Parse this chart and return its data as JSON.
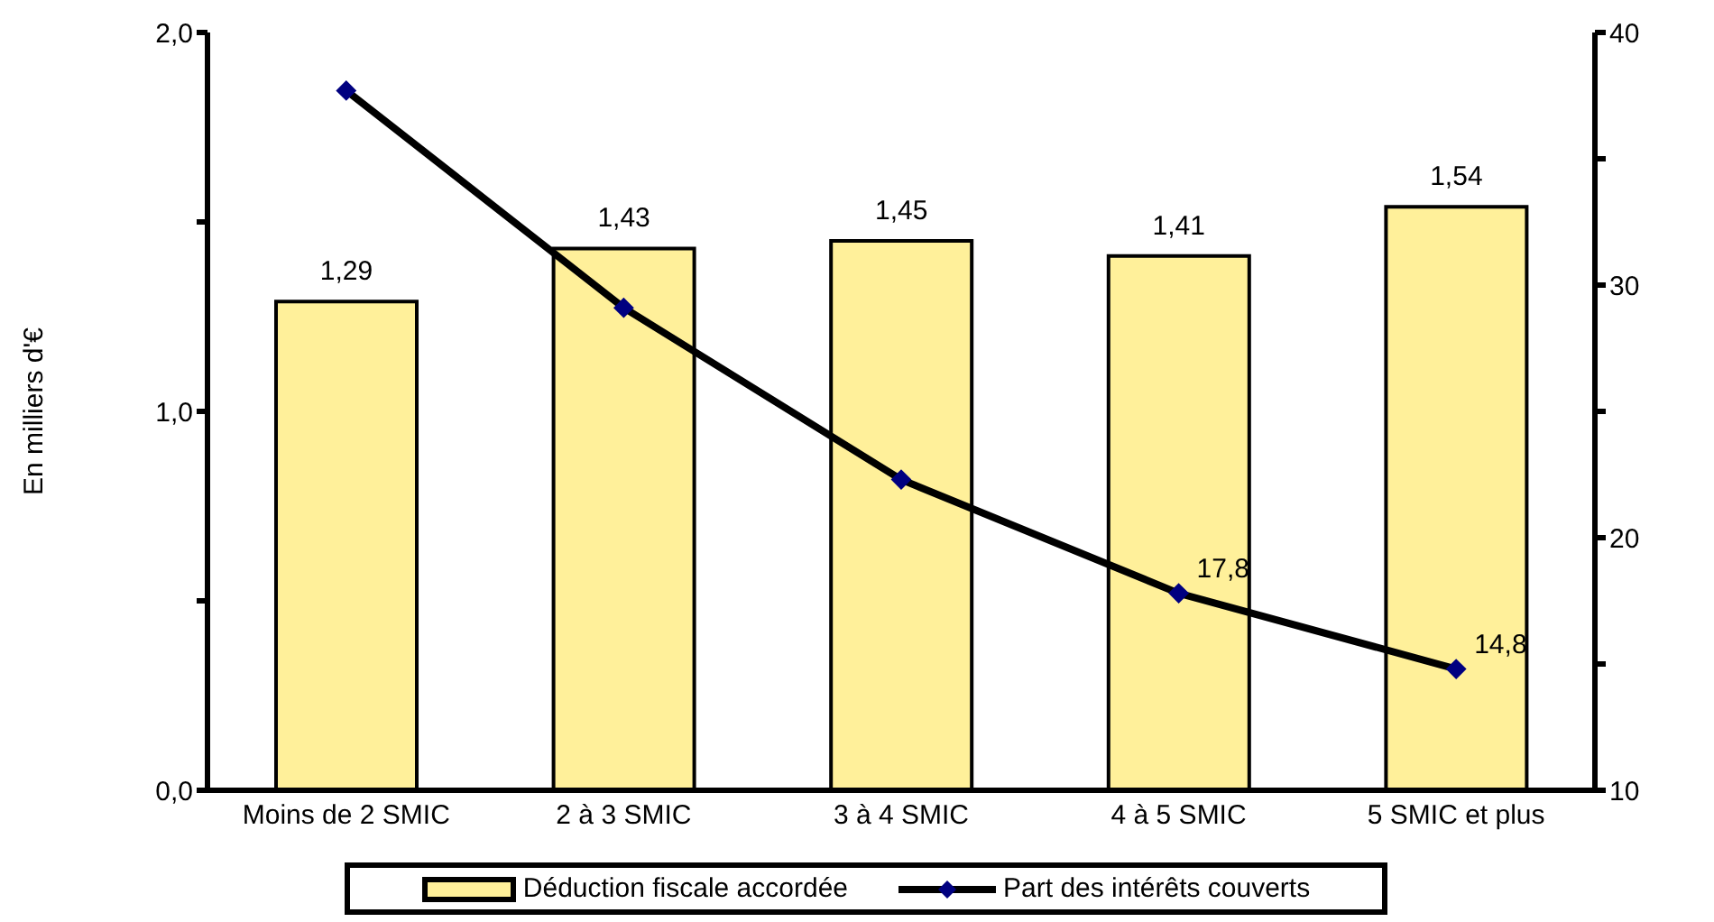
{
  "chart_data": {
    "type": "bar",
    "ylabel": "En milliers d'€",
    "categories": [
      "Moins de 2 SMIC",
      "2 à 3 SMIC",
      "3 à 4 SMIC",
      "4 à 5 SMIC",
      "5 SMIC et plus"
    ],
    "series": [
      {
        "name": "Déduction fiscale accordée",
        "color": "#fff09a",
        "values": [
          1.29,
          1.43,
          1.45,
          1.41,
          1.54
        ],
        "value_labels": [
          "1,29",
          "1,43",
          "1,45",
          "1,41",
          "1,54"
        ]
      },
      {
        "name": "Part des intérêts couverts",
        "type": "line",
        "axis": "y2",
        "color": "#000000",
        "marker": "diamond",
        "values": [
          37.7,
          29.1,
          22.3,
          17.8,
          14.8
        ],
        "value_labels": [
          null,
          null,
          null,
          "17,8",
          "14,8"
        ]
      }
    ],
    "ylim": [
      0,
      2
    ],
    "yticks": [
      {
        "value": 0,
        "label": "0,0"
      },
      {
        "value": 0.5,
        "label": null
      },
      {
        "value": 1,
        "label": "1,0"
      },
      {
        "value": 1.5,
        "label": null
      },
      {
        "value": 2,
        "label": "2,0"
      }
    ],
    "y2lim": [
      10,
      40
    ],
    "y2ticks": [
      10,
      {
        "value": 15,
        "label": null
      },
      20,
      {
        "value": 25,
        "label": null
      },
      30,
      {
        "value": 35,
        "label": null
      },
      40
    ],
    "legend": "bottom"
  }
}
